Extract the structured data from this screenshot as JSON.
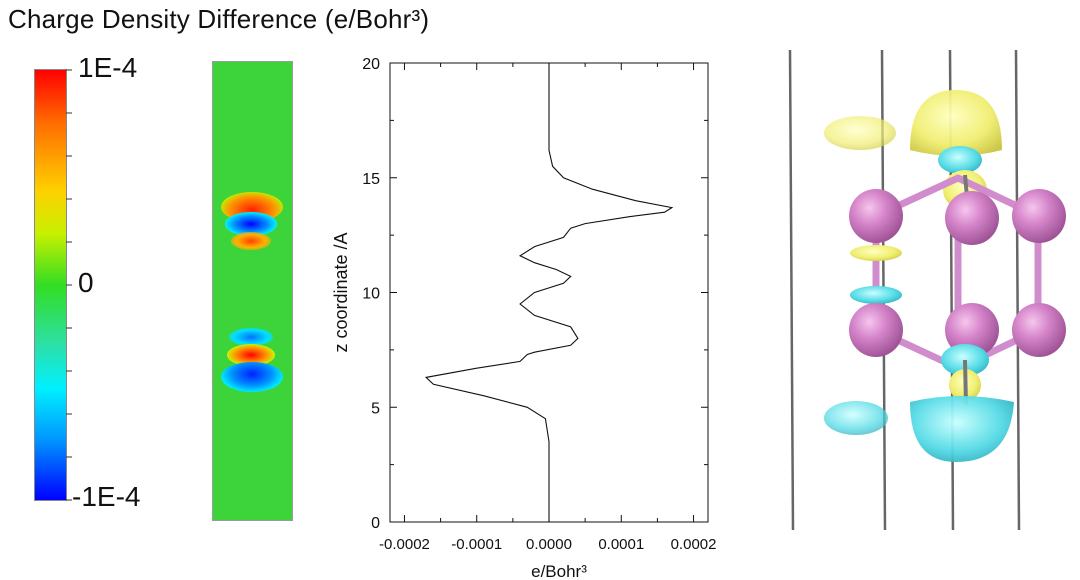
{
  "title": "Charge Density Difference (e/Bohr³)",
  "colorbar": {
    "max_label": "1E-4",
    "mid_label": "0",
    "min_label": "-1E-4",
    "colors": [
      "#ff0000",
      "#ff6a00",
      "#ffd000",
      "#33dd22",
      "#00f0ff",
      "#0096ff",
      "#0000ff"
    ]
  },
  "heatmap": {
    "background": "#3cd43a",
    "positive_color": "#e8321a",
    "negative_color": "#1560ff"
  },
  "chart_data": {
    "type": "line",
    "title": "",
    "xlabel": "e/Bohr³",
    "ylabel": "z coordinate /A",
    "xlim": [
      -0.00022,
      0.00022
    ],
    "ylim": [
      0,
      20
    ],
    "xticks": [
      "-0.0002",
      "-0.0001",
      "0.0000",
      "0.0001",
      "0.0002"
    ],
    "yticks": [
      "0",
      "5",
      "10",
      "15",
      "20"
    ],
    "grid": false,
    "series": [
      {
        "points": [
          [
            0.0,
            0.0
          ],
          [
            0.0,
            3.5
          ],
          [
            -5e-06,
            4.5
          ],
          [
            -3e-05,
            5.0
          ],
          [
            -9e-05,
            5.5
          ],
          [
            -0.00016,
            6.0
          ],
          [
            -0.00017,
            6.3
          ],
          [
            -0.0001,
            6.7
          ],
          [
            -4e-05,
            7.0
          ],
          [
            -3e-05,
            7.3
          ],
          [
            -2e-05,
            7.4
          ],
          [
            3e-05,
            7.7
          ],
          [
            4e-05,
            8.0
          ],
          [
            3e-05,
            8.5
          ],
          [
            -2e-05,
            9.0
          ],
          [
            -4e-05,
            9.5
          ],
          [
            -2e-05,
            10.0
          ],
          [
            2e-05,
            10.4
          ],
          [
            3e-05,
            10.7
          ],
          [
            1e-05,
            11.0
          ],
          [
            -2e-05,
            11.3
          ],
          [
            -4e-05,
            11.6
          ],
          [
            -2e-05,
            12.0
          ],
          [
            2e-05,
            12.4
          ],
          [
            3e-05,
            12.8
          ],
          [
            5e-05,
            13.0
          ],
          [
            0.00011,
            13.3
          ],
          [
            0.00016,
            13.5
          ],
          [
            0.00017,
            13.7
          ],
          [
            0.00012,
            14.0
          ],
          [
            6e-05,
            14.5
          ],
          [
            2e-05,
            15.0
          ],
          [
            5e-06,
            15.5
          ],
          [
            0.0,
            16.2
          ],
          [
            0.0,
            20.0
          ]
        ]
      }
    ]
  }
}
